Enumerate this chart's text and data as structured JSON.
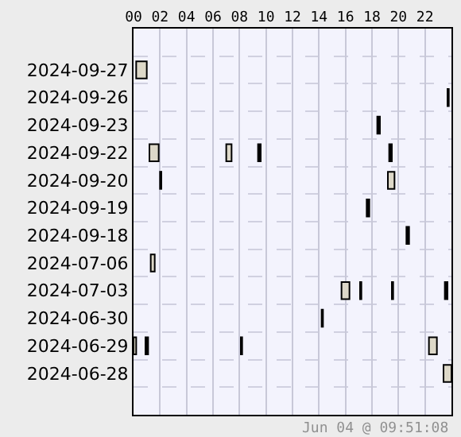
{
  "chart_data": {
    "type": "bar",
    "orientation": "horizontal",
    "categories": [
      null,
      "2024-09-27",
      "2024-09-26",
      "2024-09-23",
      "2024-09-22",
      "2024-09-20",
      "2024-09-19",
      "2024-09-18",
      "2024-07-06",
      "2024-07-03",
      "2024-06-30",
      "2024-06-29",
      "2024-06-28",
      null
    ],
    "series": [
      {
        "base": [
          null,
          0.2,
          23.7,
          18.4,
          1.2,
          2.0,
          17.6,
          20.6,
          1.3,
          15.7,
          14.2,
          0,
          23.4,
          null
        ],
        "values": [
          null,
          0.8,
          0.1,
          0.2,
          0.7,
          0.1,
          0.2,
          0.2,
          0.3,
          0.6,
          0.1,
          0.2,
          0.6,
          null
        ],
        "colors": [
          null,
          "#ddd8c8",
          "#000000",
          "#000000",
          "#ddd8c8",
          "#000000",
          "#000000",
          "#000000",
          "#ddd8c8",
          "#ddd8c8",
          "#000000",
          "#ddd8c8",
          "#ddd8c8",
          null
        ]
      },
      {
        "base": [
          null,
          null,
          null,
          null,
          7.0,
          19.2,
          null,
          null,
          null,
          17.1,
          null,
          0.9,
          null,
          null
        ],
        "values": [
          null,
          null,
          null,
          null,
          0.4,
          0.5,
          null,
          null,
          null,
          0.1,
          null,
          0.2,
          null,
          null
        ],
        "colors": [
          null,
          null,
          null,
          null,
          "#ddd8c8",
          "#ddd8c8",
          null,
          null,
          null,
          "#000000",
          null,
          "#000000",
          null,
          null
        ]
      },
      {
        "base": [
          null,
          null,
          null,
          null,
          9.4,
          null,
          null,
          null,
          null,
          19.5,
          null,
          8.1,
          null,
          null
        ],
        "values": [
          null,
          null,
          null,
          null,
          0.2,
          null,
          null,
          null,
          null,
          0.1,
          null,
          0.1,
          null,
          null
        ],
        "colors": [
          null,
          null,
          null,
          null,
          "#000000",
          null,
          null,
          null,
          null,
          "#000000",
          null,
          "#000000",
          null,
          null
        ]
      },
      {
        "base": [
          null,
          null,
          null,
          null,
          19.3,
          null,
          null,
          null,
          null,
          23.5,
          null,
          22.3,
          null,
          null
        ],
        "values": [
          null,
          null,
          null,
          null,
          0.2,
          null,
          null,
          null,
          null,
          0.2,
          null,
          0.6,
          null,
          null
        ],
        "colors": [
          null,
          null,
          null,
          null,
          "#000000",
          null,
          null,
          null,
          null,
          "#000000",
          null,
          "#ddd8c8",
          null,
          null
        ]
      }
    ],
    "xlim": [
      0,
      24
    ],
    "xticks": [
      {
        "value": 0,
        "label": "00"
      },
      {
        "value": 2,
        "label": "02"
      },
      {
        "value": 4,
        "label": "04"
      },
      {
        "value": 6,
        "label": "06"
      },
      {
        "value": 8,
        "label": "08"
      },
      {
        "value": 10,
        "label": "10"
      },
      {
        "value": 12,
        "label": "12"
      },
      {
        "value": 14,
        "label": "14"
      },
      {
        "value": 16,
        "label": "16"
      },
      {
        "value": 18,
        "label": "18"
      },
      {
        "value": 20,
        "label": "20"
      },
      {
        "value": 22,
        "label": "22"
      }
    ],
    "grid": true,
    "annotations": [
      "Jun 04 @ 09:51:08"
    ]
  }
}
